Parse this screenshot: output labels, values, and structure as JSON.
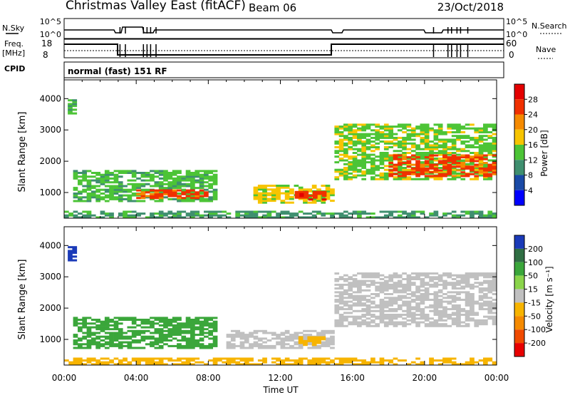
{
  "header": {
    "title": "Christmas Valley East (fitACF)",
    "beam": "Beam 06",
    "date": "23/Oct/2018"
  },
  "top_panels": {
    "nsky_label": "N.Sky",
    "nsearch_label": "N.Search",
    "ticks_nsky": [
      "10^5",
      "10^0"
    ],
    "ticks_nsearch": [
      "10^5",
      "10^0"
    ],
    "freq_label_1": "Freq.",
    "freq_label_2": "[MHz]",
    "freq_ticks": [
      "18",
      "8"
    ],
    "nave_label": "Nave",
    "nave_ticks": [
      "60",
      "0"
    ],
    "cpid_label": "CPID",
    "cpid_text": "normal (fast) 151 RF"
  },
  "chart_data": [
    {
      "type": "heatmap",
      "title": "",
      "xlabel": "Time UT",
      "ylabel": "Slant Range [km]",
      "x_ticks": [
        "00:00",
        "04:00",
        "08:00",
        "12:00",
        "16:00",
        "20:00",
        "00:00"
      ],
      "y_ticks": [
        "1000",
        "2000",
        "3000",
        "4000"
      ],
      "xlim_hours": [
        0,
        24
      ],
      "ylim_km": [
        180,
        4600
      ],
      "colorbar": {
        "label": "Power [dB]",
        "ticks": [
          "4",
          "8",
          "12",
          "16",
          "20",
          "24",
          "28"
        ],
        "range": [
          0,
          32
        ],
        "colors": [
          "#0000ff",
          "#1a4aa6",
          "#3f8f6f",
          "#4cc436",
          "#f7c400",
          "#f58a00",
          "#f03000",
          "#e40000"
        ]
      },
      "regions": [
        {
          "t0": 0.2,
          "t1": 0.5,
          "r0": 3500,
          "r1": 4000,
          "level": 12
        },
        {
          "t0": 0.5,
          "t1": 8.5,
          "r0": 700,
          "r1": 1700,
          "level": 12
        },
        {
          "t0": 4.0,
          "t1": 8.0,
          "r0": 800,
          "r1": 1100,
          "level": 24
        },
        {
          "t0": 10.5,
          "t1": 14.8,
          "r0": 650,
          "r1": 1250,
          "level": 16
        },
        {
          "t0": 12.8,
          "t1": 14.5,
          "r0": 750,
          "r1": 1050,
          "level": 26
        },
        {
          "t0": 15.0,
          "t1": 24.0,
          "r0": 1400,
          "r1": 3200,
          "level": 14
        },
        {
          "t0": 18.0,
          "t1": 24.0,
          "r0": 1500,
          "r1": 2200,
          "level": 24
        },
        {
          "t0": 0.0,
          "t1": 24.0,
          "r0": 180,
          "r1": 420,
          "level": 10
        }
      ]
    },
    {
      "type": "heatmap",
      "title": "",
      "xlabel": "Time UT",
      "ylabel": "Slant Range [km]",
      "x_ticks": [
        "00:00",
        "04:00",
        "08:00",
        "12:00",
        "16:00",
        "20:00",
        "00:00"
      ],
      "y_ticks": [
        "1000",
        "2000",
        "3000",
        "4000"
      ],
      "xlim_hours": [
        0,
        24
      ],
      "ylim_km": [
        180,
        4600
      ],
      "colorbar": {
        "label": "Velocity [m s⁻¹]",
        "ticks": [
          "200",
          "100",
          "50",
          "15",
          "-15",
          "-50",
          "-100",
          "-200"
        ],
        "colors": [
          "#1a3ab8",
          "#2f6e43",
          "#3aa63a",
          "#8ad44a",
          "#c0c0c0",
          "#f7b400",
          "#f58a00",
          "#f04a00",
          "#e80000"
        ]
      },
      "regions": [
        {
          "t0": 0.2,
          "t1": 0.5,
          "r0": 3500,
          "r1": 4000,
          "level": 200
        },
        {
          "t0": 0.5,
          "t1": 8.5,
          "r0": 700,
          "r1": 1700,
          "level": 60
        },
        {
          "t0": 9.0,
          "t1": 14.8,
          "r0": 700,
          "r1": 1300,
          "level": 0
        },
        {
          "t0": 13.0,
          "t1": 14.5,
          "r0": 800,
          "r1": 1100,
          "level": -30
        },
        {
          "t0": 15.0,
          "t1": 24.0,
          "r0": 1400,
          "r1": 3100,
          "level": 0
        },
        {
          "t0": 0.0,
          "t1": 24.0,
          "r0": 180,
          "r1": 420,
          "level": -30
        }
      ]
    }
  ]
}
